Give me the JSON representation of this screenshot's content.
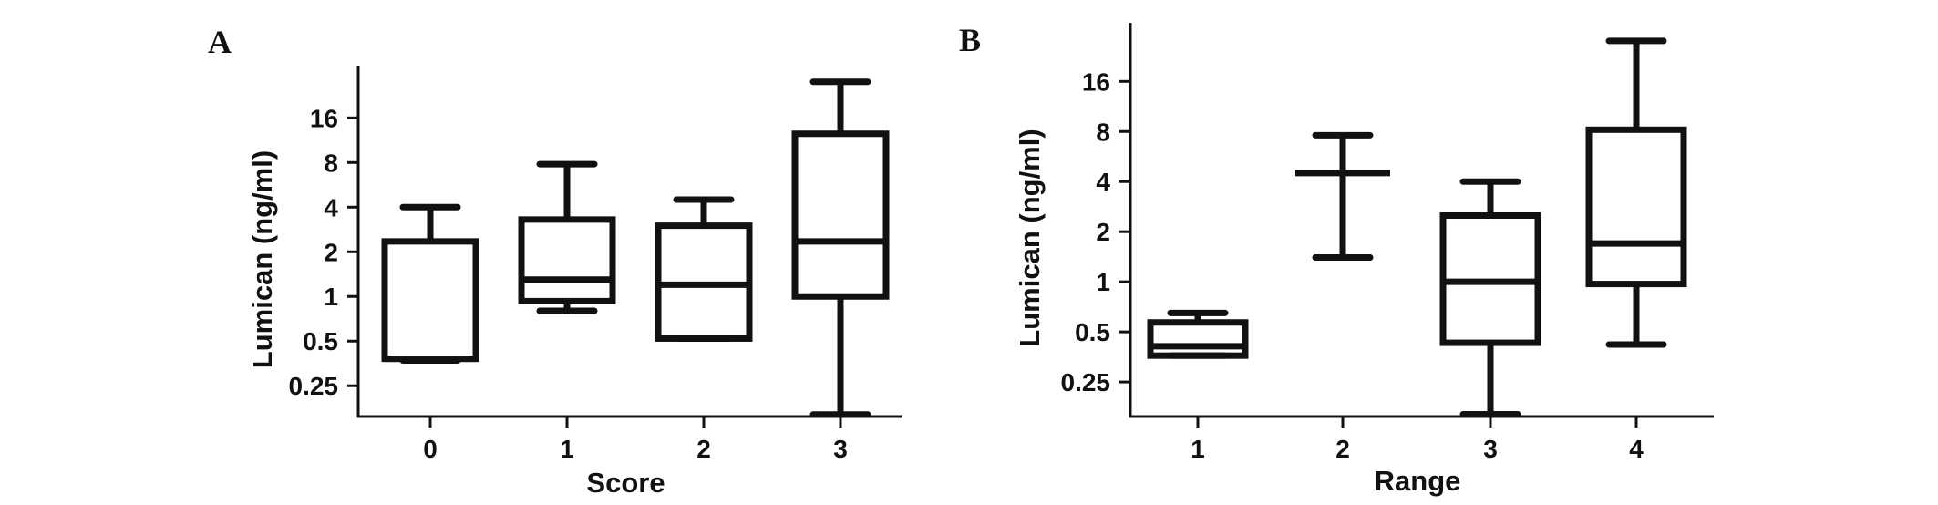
{
  "chart_data": [
    {
      "type": "box",
      "panel_label": "A",
      "xlabel": "Score",
      "ylabel": "Lumican (ng/ml)",
      "y_scale": "log2",
      "y_ticks": [
        0.25,
        0.5,
        1,
        2,
        4,
        8,
        16
      ],
      "y_tick_labels": [
        "0.25",
        "0.5",
        "1",
        "2",
        "4",
        "8",
        "16"
      ],
      "ylim": [
        0.155,
        36
      ],
      "categories": [
        "0",
        "1",
        "2",
        "3"
      ],
      "boxes": [
        {
          "category": "0",
          "min": 0.37,
          "q1": 0.38,
          "median": 0.38,
          "q3": 2.35,
          "max": 4.0
        },
        {
          "category": "1",
          "min": 0.8,
          "q1": 0.93,
          "median": 1.3,
          "q3": 3.3,
          "max": 7.8
        },
        {
          "category": "2",
          "min": 0.52,
          "q1": 0.52,
          "median": 1.2,
          "q3": 3.0,
          "max": 4.5
        },
        {
          "category": "3",
          "min": 0.16,
          "q1": 1.0,
          "median": 2.35,
          "q3": 12.5,
          "max": 28.0
        }
      ]
    },
    {
      "type": "box",
      "panel_label": "B",
      "xlabel": "Range",
      "ylabel": "Lumican (ng/ml)",
      "y_scale": "log2",
      "y_ticks": [
        0.25,
        0.5,
        1,
        2,
        4,
        8,
        16
      ],
      "y_tick_labels": [
        "0.25",
        "0.5",
        "1",
        "2",
        "4",
        "8",
        "16"
      ],
      "ylim": [
        0.155,
        36
      ],
      "categories": [
        "1",
        "2",
        "3",
        "4"
      ],
      "boxes": [
        {
          "category": "1",
          "min": 0.36,
          "q1": 0.36,
          "median": 0.41,
          "q3": 0.57,
          "max": 0.65
        },
        {
          "category": "2",
          "min": 1.4,
          "q1": 4.5,
          "median": 4.5,
          "q3": 4.5,
          "max": 7.6
        },
        {
          "category": "3",
          "min": 0.16,
          "q1": 0.43,
          "median": 1.0,
          "q3": 2.5,
          "max": 4.0
        },
        {
          "category": "4",
          "min": 0.42,
          "q1": 0.97,
          "median": 1.7,
          "q3": 8.2,
          "max": 28.0
        }
      ]
    }
  ]
}
